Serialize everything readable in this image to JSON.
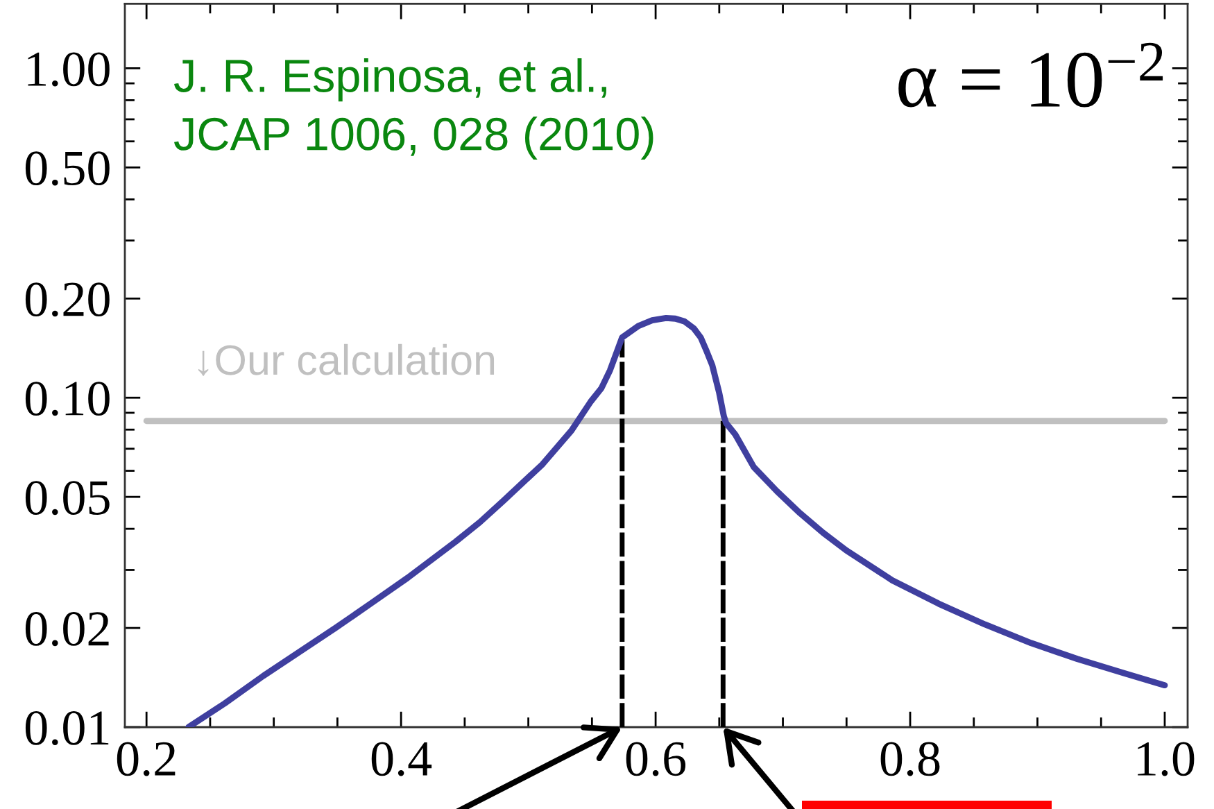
{
  "chart_data": {
    "type": "line",
    "log": "y",
    "xlim": [
      0.183,
      1.018
    ],
    "ylim": [
      0.01,
      1.57
    ],
    "xticks": [
      0.2,
      {
        "value": 0.25,
        "label": null
      },
      {
        "value": 0.3,
        "label": null
      },
      {
        "value": 0.35,
        "label": null
      },
      0.4,
      {
        "value": 0.45,
        "label": null
      },
      {
        "value": 0.5,
        "label": null
      },
      {
        "value": 0.55,
        "label": null
      },
      0.6,
      {
        "value": 0.65,
        "label": null
      },
      {
        "value": 0.7,
        "label": null
      },
      {
        "value": 0.75,
        "label": null
      },
      0.8,
      {
        "value": 0.85,
        "label": null
      },
      {
        "value": 0.9,
        "label": null
      },
      {
        "value": 0.95,
        "label": null
      },
      {
        "value": 1,
        "label": "1.0"
      }
    ],
    "yticks": [
      0.01,
      0.02,
      {
        "value": 0.03,
        "label": null
      },
      {
        "value": 0.04,
        "label": null
      },
      0.05,
      {
        "value": 0.06,
        "label": null
      },
      {
        "value": 0.07,
        "label": null
      },
      {
        "value": 0.08,
        "label": null
      },
      {
        "value": 0.09,
        "label": null
      },
      {
        "value": 0.1,
        "label": "0.10"
      },
      {
        "value": 0.2,
        "label": "0.20"
      },
      {
        "value": 0.3,
        "label": null
      },
      {
        "value": 0.4,
        "label": null
      },
      {
        "value": 0.5,
        "label": "0.50"
      },
      {
        "value": 0.6,
        "label": null
      },
      {
        "value": 0.7,
        "label": null
      },
      {
        "value": 0.8,
        "label": null
      },
      {
        "value": 0.9,
        "label": null
      },
      {
        "value": 1,
        "label": "1.00"
      }
    ],
    "annotations": [
      "J. R. Espinosa, et al.,\nJCAP 1006, 028 (2010)",
      "α = 10$^{−2}$"
    ],
    "series": [
      {
        "name": "↓Our calculation",
        "color": "#c0c0c0",
        "x": [
          0.2,
          1
        ],
        "values": [
          0.085,
          0.085
        ]
      },
      {
        "color": "#000000",
        "line_style": "dashed",
        "x": [
          0.5737,
          0.5737
        ],
        "values": [
          0.01,
          0.15
        ]
      },
      {
        "color": "#000000",
        "line_style": "dashed",
        "x": [
          0.653,
          0.653
        ],
        "values": [
          0.01,
          0.085
        ]
      },
      {
        "color": "#3f3f9f",
        "x": [
          0.233,
          0.2614,
          0.2917,
          0.32,
          0.3485,
          0.3768,
          0.4052,
          0.443,
          0.462,
          0.4808,
          0.5111,
          0.5339,
          0.549,
          0.5573,
          0.5642,
          0.5737,
          0.5864,
          0.5973,
          0.6082,
          0.6155,
          0.6227,
          0.63,
          0.6354,
          0.6401,
          0.6445,
          0.65,
          0.6536,
          0.6554,
          0.6626,
          0.6771,
          0.6953,
          0.7135,
          0.7316,
          0.7498,
          0.786,
          0.8224,
          0.8587,
          0.895,
          0.9314,
          0.9676,
          1
        ],
        "values": [
          0.01,
          0.0118,
          0.0143,
          0.0169,
          0.02,
          0.0238,
          0.0284,
          0.0366,
          0.0419,
          0.0488,
          0.0628,
          0.0795,
          0.0973,
          0.1067,
          0.1212,
          0.1524,
          0.1651,
          0.1717,
          0.1745,
          0.1738,
          0.1705,
          0.1624,
          0.1524,
          0.1383,
          0.1255,
          0.1033,
          0.0879,
          0.0837,
          0.0773,
          0.0616,
          0.052,
          0.0446,
          0.0389,
          0.0344,
          0.0279,
          0.0237,
          0.0205,
          0.018,
          0.0161,
          0.0146,
          0.0134
        ]
      }
    ]
  }
}
